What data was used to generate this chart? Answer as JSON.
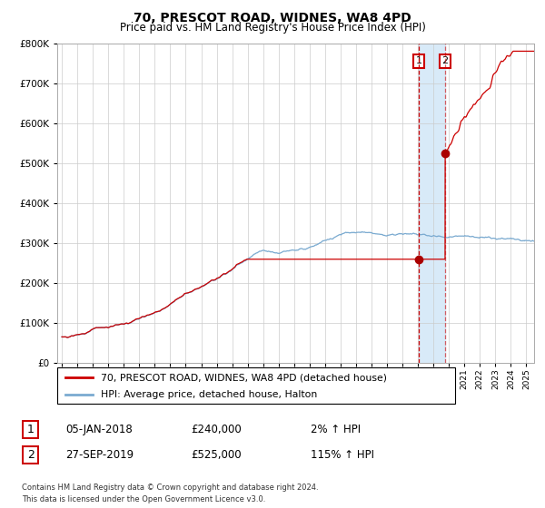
{
  "title": "70, PRESCOT ROAD, WIDNES, WA8 4PD",
  "subtitle": "Price paid vs. HM Land Registry's House Price Index (HPI)",
  "legend_line1": "70, PRESCOT ROAD, WIDNES, WA8 4PD (detached house)",
  "legend_line2": "HPI: Average price, detached house, Halton",
  "transaction1_date": "05-JAN-2018",
  "transaction1_price": 240000,
  "transaction1_price_str": "£240,000",
  "transaction1_pct": "2%",
  "transaction2_date": "27-SEP-2019",
  "transaction2_price": 525000,
  "transaction2_price_str": "£525,000",
  "transaction2_pct": "115%",
  "footnote_line1": "Contains HM Land Registry data © Crown copyright and database right 2024.",
  "footnote_line2": "This data is licensed under the Open Government Licence v3.0.",
  "hpi_color": "#7aaad0",
  "price_color": "#cc0000",
  "marker_color": "#aa0000",
  "vline1_color": "#cc0000",
  "vline2_color": "#cc0000",
  "shade_color": "#d8eaf8",
  "background_color": "#ffffff",
  "grid_color": "#cccccc",
  "ylim": [
    0,
    800000
  ],
  "yticks": [
    0,
    100000,
    200000,
    300000,
    400000,
    500000,
    600000,
    700000,
    800000
  ],
  "start_year": 1995,
  "end_year": 2025,
  "transaction1_x": 2018.04,
  "transaction2_x": 2019.75
}
